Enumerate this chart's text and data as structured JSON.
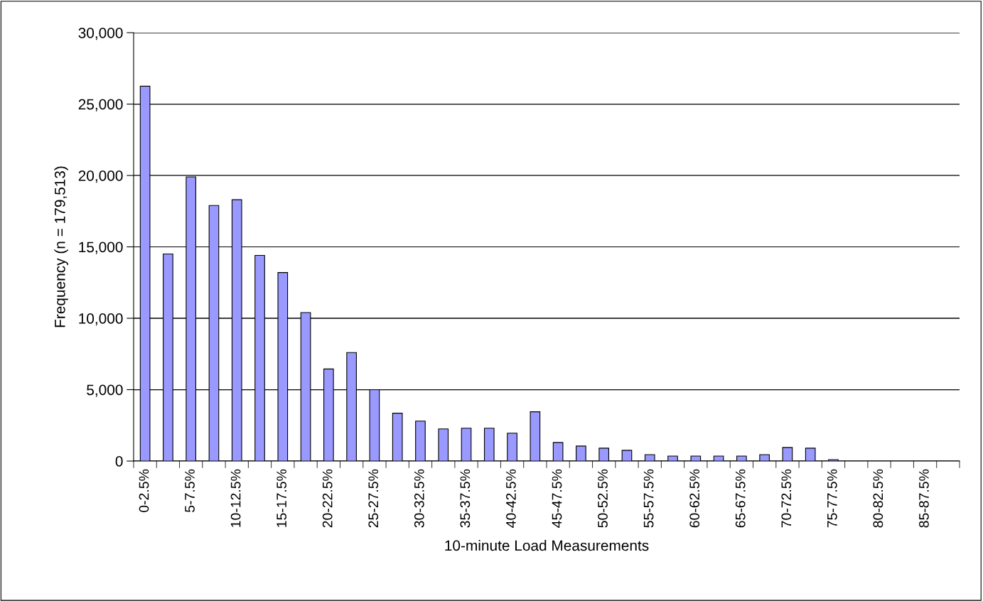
{
  "chart_data": {
    "type": "bar",
    "xlabel": "10-minute Load Measurements",
    "ylabel": "Frequency (n = 179,513)",
    "categories": [
      "0-2.5%",
      null,
      "5-7.5%",
      null,
      "10-12.5%",
      null,
      "15-17.5%",
      null,
      "20-22.5%",
      null,
      "25-27.5%",
      null,
      "30-32.5%",
      null,
      "35-37.5%",
      null,
      "40-42.5%",
      null,
      "45-47.5%",
      null,
      "50-52.5%",
      null,
      "55-57.5%",
      null,
      "60-62.5%",
      null,
      "65-67.5%",
      null,
      "70-72.5%",
      null,
      "75-77.5%",
      null,
      "80-82.5%",
      null,
      "85-87.5%",
      null
    ],
    "values": [
      26250,
      14500,
      19900,
      17900,
      18300,
      14400,
      13200,
      10400,
      6450,
      7600,
      5000,
      3350,
      2800,
      2250,
      2300,
      2300,
      1950,
      3450,
      1300,
      1050,
      900,
      750,
      450,
      350,
      350,
      350,
      350,
      450,
      950,
      900,
      100,
      0,
      0,
      0,
      0,
      0
    ],
    "color": "#9999ff",
    "ylim": [
      0,
      30000
    ],
    "yticks": [
      {
        "value": 0,
        "label": "0"
      },
      {
        "value": 5000,
        "label": "5,000"
      },
      {
        "value": 10000,
        "label": "10,000"
      },
      {
        "value": 15000,
        "label": "15,000"
      },
      {
        "value": 20000,
        "label": "20,000"
      },
      {
        "value": 25000,
        "label": "25,000"
      },
      {
        "value": 30000,
        "label": "30,000"
      }
    ],
    "grid": "y",
    "legend": false
  }
}
